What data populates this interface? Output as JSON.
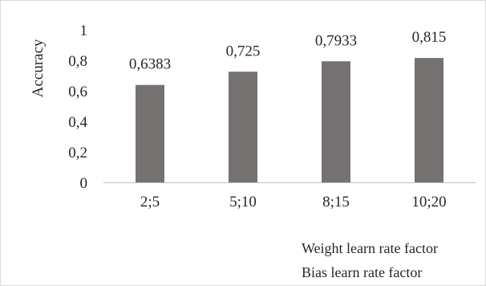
{
  "chart_data": {
    "type": "bar",
    "title": "",
    "xlabel": "",
    "ylabel": "Accuracy",
    "categories": [
      "2;5",
      "5;10",
      "8;15",
      "10;20"
    ],
    "values": [
      0.6383,
      0.725,
      0.7933,
      0.815
    ],
    "data_labels": [
      "0,6383",
      "0,725",
      "0,7933",
      "0,815"
    ],
    "y_ticks": [
      0,
      0.2,
      0.4,
      0.6,
      0.8,
      1
    ],
    "y_tick_labels": [
      "0",
      "0,2",
      "0,4",
      "0,6",
      "0,8",
      "1"
    ],
    "ylim": [
      0,
      1
    ],
    "grid": false,
    "bar_color": "#767171",
    "axis_color": "#bfbfbf",
    "legend_placement": "bottom-right",
    "legend_lines": [
      "Weight learn rate factor",
      "Bias learn rate factor"
    ]
  }
}
